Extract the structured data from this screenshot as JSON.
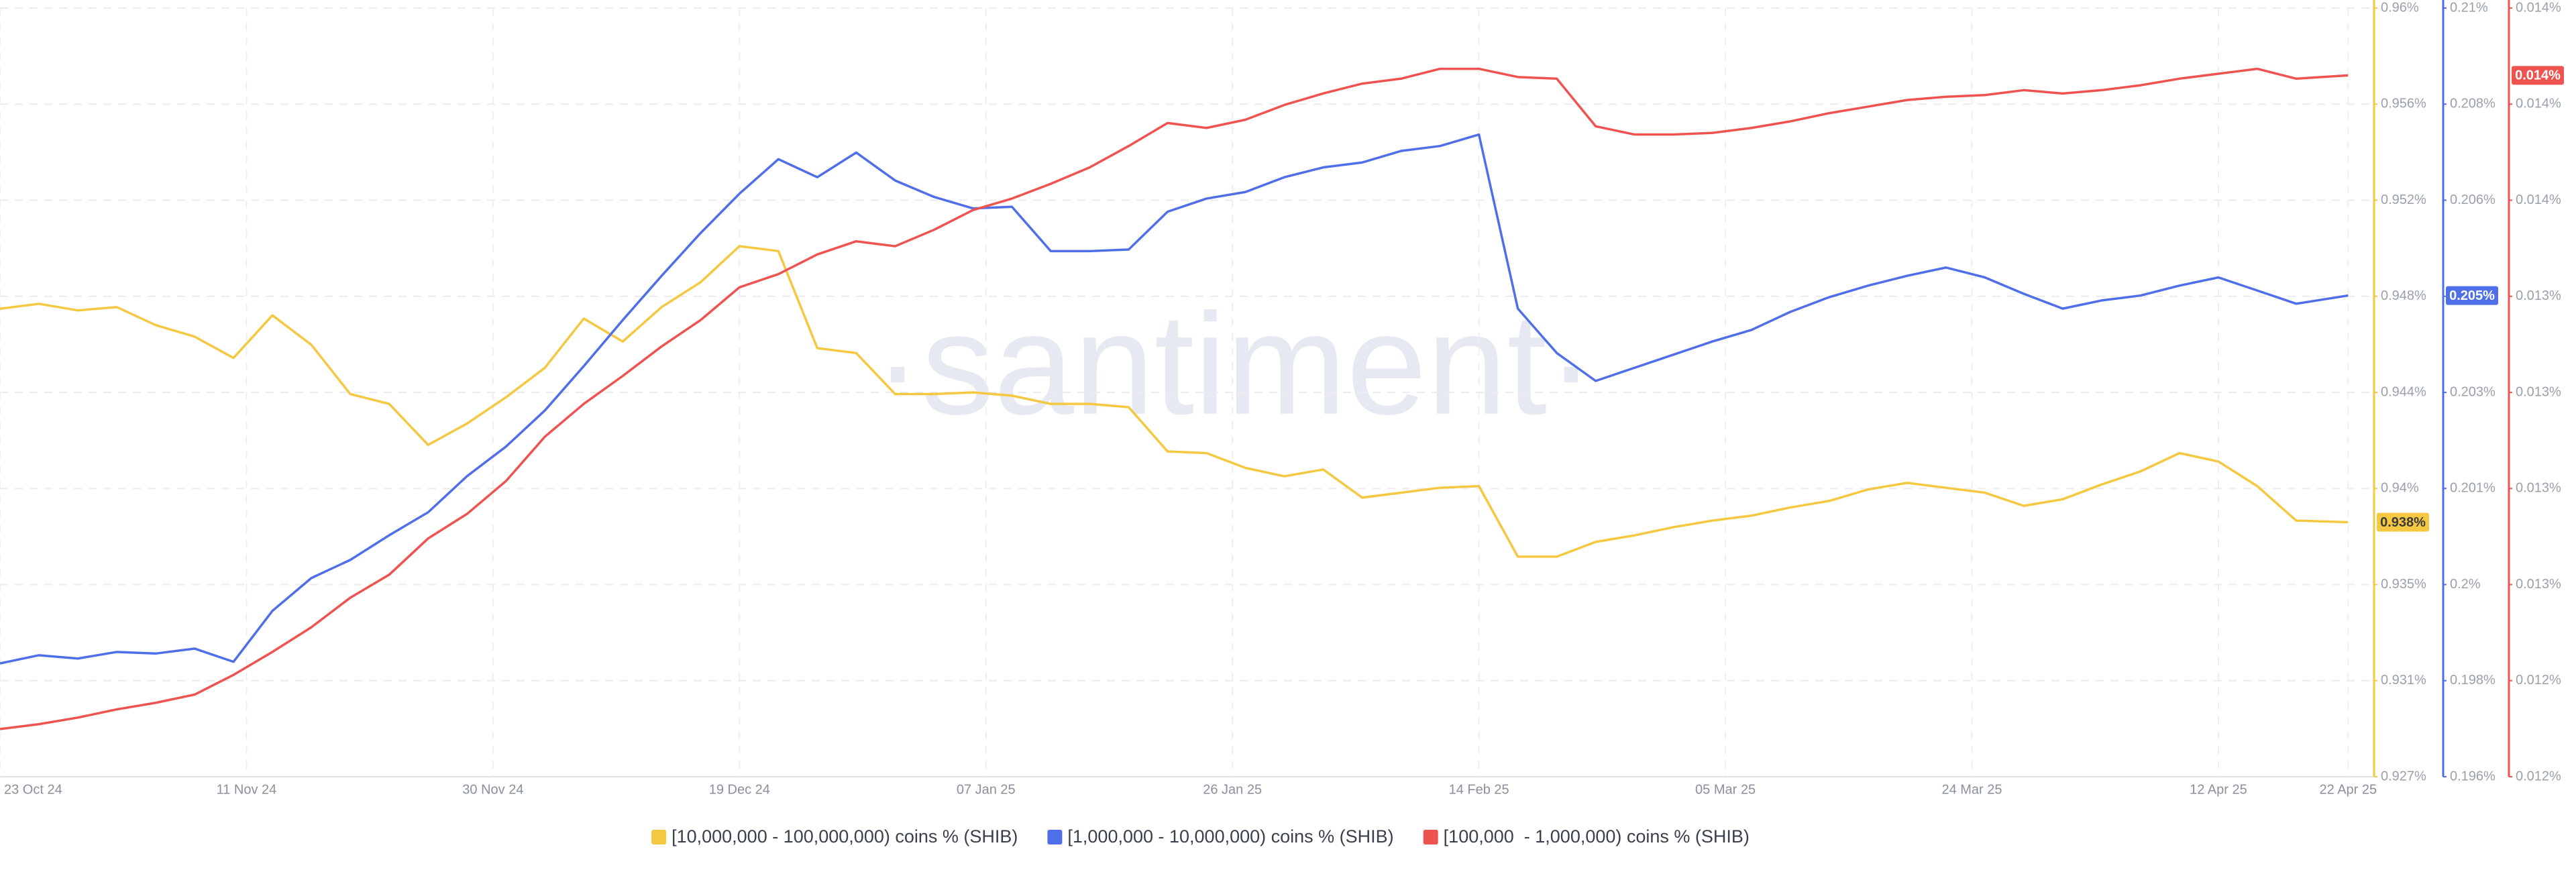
{
  "chart_data": {
    "type": "line",
    "watermark": "·santiment·",
    "grid": true,
    "x": [
      "2024-10-23",
      "2024-10-26",
      "2024-10-29",
      "2024-11-01",
      "2024-11-04",
      "2024-11-07",
      "2024-11-10",
      "2024-11-13",
      "2024-11-16",
      "2024-11-19",
      "2024-11-22",
      "2024-11-25",
      "2024-11-28",
      "2024-12-01",
      "2024-12-04",
      "2024-12-07",
      "2024-12-10",
      "2024-12-13",
      "2024-12-16",
      "2024-12-19",
      "2024-12-22",
      "2024-12-25",
      "2024-12-28",
      "2024-12-31",
      "2025-01-03",
      "2025-01-06",
      "2025-01-09",
      "2025-01-12",
      "2025-01-15",
      "2025-01-18",
      "2025-01-21",
      "2025-01-24",
      "2025-01-27",
      "2025-01-30",
      "2025-02-02",
      "2025-02-05",
      "2025-02-08",
      "2025-02-11",
      "2025-02-14",
      "2025-02-17",
      "2025-02-20",
      "2025-02-23",
      "2025-02-26",
      "2025-03-01",
      "2025-03-04",
      "2025-03-07",
      "2025-03-10",
      "2025-03-13",
      "2025-03-16",
      "2025-03-19",
      "2025-03-22",
      "2025-03-25",
      "2025-03-28",
      "2025-03-31",
      "2025-04-03",
      "2025-04-06",
      "2025-04-09",
      "2025-04-12",
      "2025-04-15",
      "2025-04-18",
      "2025-04-22"
    ],
    "xlim": [
      "2024-10-23",
      "2025-04-24"
    ],
    "xticks": [
      {
        "value": "2024-10-23",
        "label": "23 Oct 24"
      },
      {
        "value": "2024-11-11",
        "label": "11 Nov 24"
      },
      {
        "value": "2024-11-30",
        "label": "30 Nov 24"
      },
      {
        "value": "2024-12-19",
        "label": "19 Dec 24"
      },
      {
        "value": "2025-01-07",
        "label": "07 Jan 25"
      },
      {
        "value": "2025-01-26",
        "label": "26 Jan 25"
      },
      {
        "value": "2025-02-14",
        "label": "14 Feb 25"
      },
      {
        "value": "2025-03-05",
        "label": "05 Mar 25"
      },
      {
        "value": "2025-03-24",
        "label": "24 Mar 25"
      },
      {
        "value": "2025-04-12",
        "label": "12 Apr 25"
      },
      {
        "value": "2025-04-22",
        "label": "22 Apr 25"
      }
    ],
    "ylim": [
      0.92725,
      0.96005
    ],
    "yticks": [
      {
        "value": 0.96005,
        "label": "0.96%"
      },
      {
        "value": 0.95595,
        "label": "0.956%"
      },
      {
        "value": 0.95185,
        "label": "0.952%"
      },
      {
        "value": 0.94775,
        "label": "0.948%"
      },
      {
        "value": 0.94365,
        "label": "0.944%"
      },
      {
        "value": 0.93955,
        "label": "0.94%"
      },
      {
        "value": 0.93545,
        "label": "0.935%"
      },
      {
        "value": 0.93135,
        "label": "0.931%"
      },
      {
        "value": 0.92725,
        "label": "0.927%"
      }
    ],
    "y2lim": [
      0.1962,
      0.2098
    ],
    "y2ticks": [
      {
        "value": 0.2098,
        "label": "0.21%"
      },
      {
        "value": 0.2081,
        "label": "0.208%"
      },
      {
        "value": 0.2064,
        "label": "0.206%"
      },
      {
        "value": 0.2047,
        "label": "0.205%"
      },
      {
        "value": 0.203,
        "label": "0.203%"
      },
      {
        "value": 0.2013,
        "label": "0.201%"
      },
      {
        "value": 0.1996,
        "label": "0.2%"
      },
      {
        "value": 0.1979,
        "label": "0.198%"
      },
      {
        "value": 0.1962,
        "label": "0.196%"
      }
    ],
    "y3lim": [
      0.01195,
      0.01435
    ],
    "y3ticks": [
      {
        "value": 0.01435,
        "label": "0.014%"
      },
      {
        "value": 0.01405,
        "label": "0.014%"
      },
      {
        "value": 0.01375,
        "label": "0.014%"
      },
      {
        "value": 0.01345,
        "label": "0.013%"
      },
      {
        "value": 0.01315,
        "label": "0.013%"
      },
      {
        "value": 0.01285,
        "label": "0.013%"
      },
      {
        "value": 0.01255,
        "label": "0.013%"
      },
      {
        "value": 0.01225,
        "label": "0.012%"
      },
      {
        "value": 0.01195,
        "label": "0.012%"
      }
    ],
    "series": [
      {
        "name": "[10,000,000 - 100,000,000) coins % (SHIB)",
        "color": "#f5c842",
        "axis": "y",
        "current_value_label": "0.938%",
        "values": [
          0.94722,
          0.94743,
          0.94715,
          0.94729,
          0.94652,
          0.94603,
          0.94512,
          0.94694,
          0.94568,
          0.94358,
          0.94316,
          0.94141,
          0.94232,
          0.94344,
          0.9447,
          0.9468,
          0.94582,
          0.94729,
          0.94835,
          0.94989,
          0.94968,
          0.94554,
          0.94533,
          0.94358,
          0.94358,
          0.94365,
          0.94351,
          0.94316,
          0.94316,
          0.94302,
          0.94113,
          0.94106,
          0.94043,
          0.94007,
          0.94036,
          0.93916,
          0.93937,
          0.93958,
          0.93965,
          0.93664,
          0.93664,
          0.93727,
          0.93755,
          0.9379,
          0.93818,
          0.93839,
          0.93874,
          0.93902,
          0.93951,
          0.93979,
          0.93958,
          0.93937,
          0.93881,
          0.93909,
          0.93972,
          0.94028,
          0.94106,
          0.9407,
          0.93965,
          0.93818,
          0.93811
        ]
      },
      {
        "name": "[1,000,000 - 10,000,000) coins % (SHIB)",
        "color": "#4f6fe8",
        "axis": "y2",
        "current_value_label": "0.205%",
        "values": [
          0.198205,
          0.19835,
          0.198292,
          0.198408,
          0.19838,
          0.198467,
          0.198234,
          0.199135,
          0.199716,
          0.200036,
          0.200472,
          0.200879,
          0.201518,
          0.202041,
          0.20268,
          0.203465,
          0.204279,
          0.205063,
          0.205819,
          0.206516,
          0.207126,
          0.206807,
          0.207243,
          0.206749,
          0.206458,
          0.206255,
          0.206284,
          0.205499,
          0.205499,
          0.205528,
          0.206197,
          0.206429,
          0.206545,
          0.206807,
          0.206981,
          0.207068,
          0.207272,
          0.207359,
          0.207562,
          0.204482,
          0.203697,
          0.203203,
          0.203436,
          0.203668,
          0.203901,
          0.204104,
          0.204424,
          0.204685,
          0.204889,
          0.205063,
          0.205209,
          0.205034,
          0.204744,
          0.204482,
          0.204627,
          0.204714,
          0.204889,
          0.205034,
          0.204802,
          0.204569,
          0.204714
        ]
      },
      {
        "name": "[100,000  - 1,000,000) coins % (SHIB)",
        "color": "#ef5350",
        "axis": "y3",
        "current_value_label": "0.014%",
        "values": [
          0.0120988,
          0.0121142,
          0.0121347,
          0.0121603,
          0.0121809,
          0.0122065,
          0.012268,
          0.0123398,
          0.0124167,
          0.012509,
          0.0125808,
          0.0126939,
          0.0127706,
          0.0128731,
          0.0130116,
          0.0131142,
          0.0132013,
          0.0132936,
          0.0133757,
          0.0134782,
          0.0135193,
          0.0135808,
          0.0136218,
          0.0136064,
          0.0136577,
          0.0137193,
          0.0137552,
          0.0138013,
          0.0138526,
          0.0139192,
          0.013991,
          0.0139757,
          0.0140013,
          0.0140474,
          0.0140833,
          0.0141141,
          0.0141295,
          0.0141603,
          0.0141603,
          0.0141346,
          0.0141295,
          0.0139808,
          0.0139551,
          0.0139551,
          0.0139603,
          0.0139757,
          0.0139962,
          0.0140218,
          0.0140423,
          0.0140628,
          0.0140731,
          0.0140782,
          0.0140936,
          0.0140833,
          0.0140936,
          0.014109,
          0.0141295,
          0.0141449,
          0.0141603,
          0.0141295,
          0.0141398
        ]
      }
    ]
  }
}
